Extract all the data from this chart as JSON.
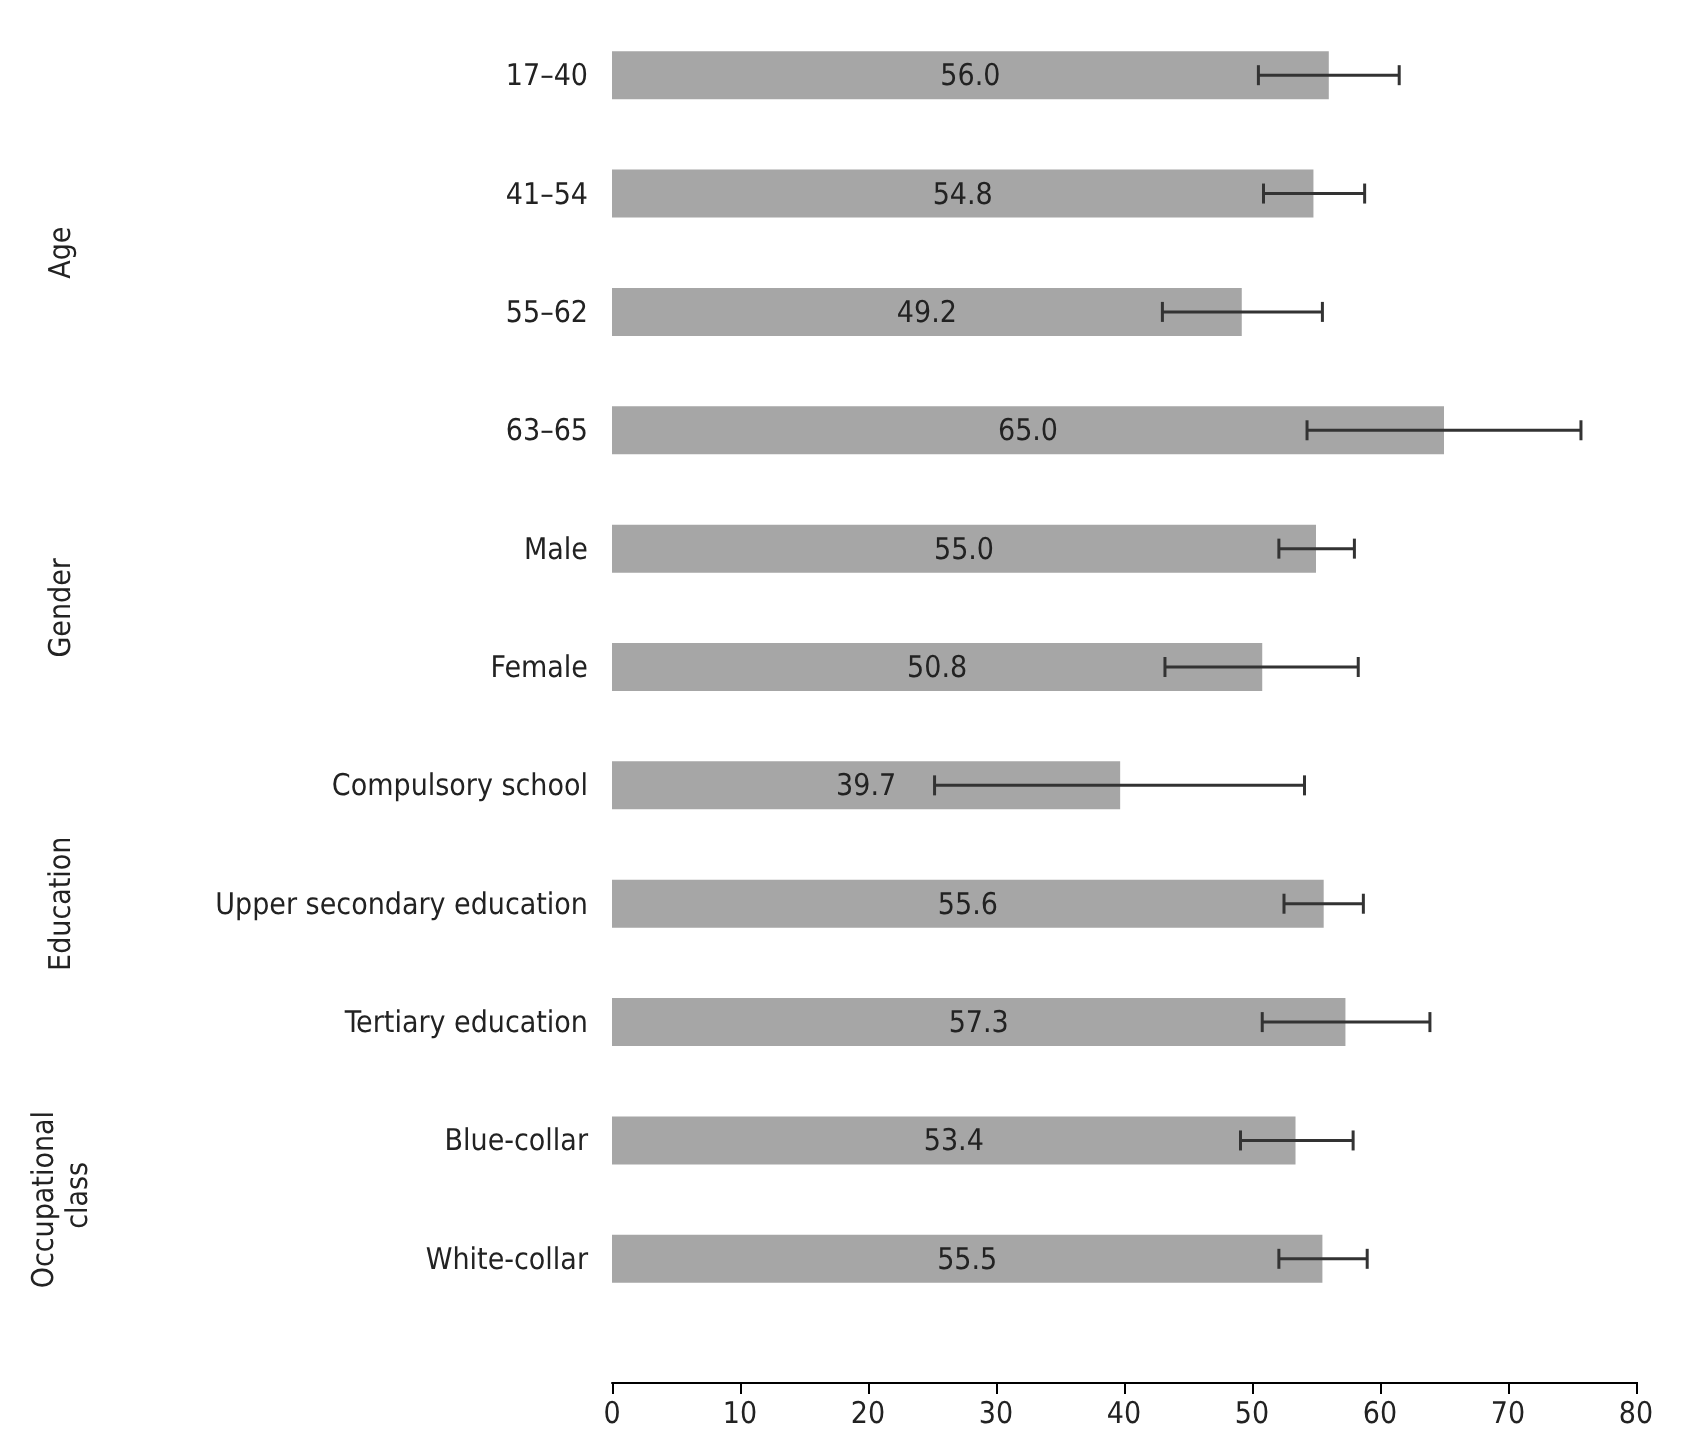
{
  "chart_data": {
    "type": "bar",
    "orientation": "horizontal",
    "categories": [
      "17–40",
      "41–54",
      "55–62",
      "63–65",
      "Male",
      "Female",
      "Compulsory school",
      "Upper secondary education",
      "Tertiary education",
      "Blue-collar",
      "White-collar"
    ],
    "values": [
      56.0,
      54.8,
      49.2,
      65.0,
      55.0,
      50.8,
      39.7,
      55.6,
      57.3,
      53.4,
      55.5
    ],
    "errors": [
      [
        50.5,
        61.5
      ],
      [
        50.9,
        58.8
      ],
      [
        43.0,
        55.5
      ],
      [
        54.3,
        75.7
      ],
      [
        52.1,
        58.0
      ],
      [
        43.2,
        58.3
      ],
      [
        25.2,
        54.1
      ],
      [
        52.5,
        58.7
      ],
      [
        50.8,
        63.9
      ],
      [
        49.1,
        57.9
      ],
      [
        52.1,
        59.0
      ]
    ],
    "value_labels": [
      "56.0",
      "54.8",
      "49.2",
      "65.0",
      "55.0",
      "50.8",
      "39.7",
      "55.6",
      "57.3",
      "53.4",
      "55.5"
    ],
    "color": "#a6a6a6",
    "xlim": [
      0,
      80
    ],
    "xticks": [
      0,
      10,
      20,
      30,
      40,
      50,
      60,
      70,
      80
    ],
    "grid": false,
    "annotations": [
      "Age",
      "Gender",
      "Education",
      "Occupational class"
    ]
  }
}
